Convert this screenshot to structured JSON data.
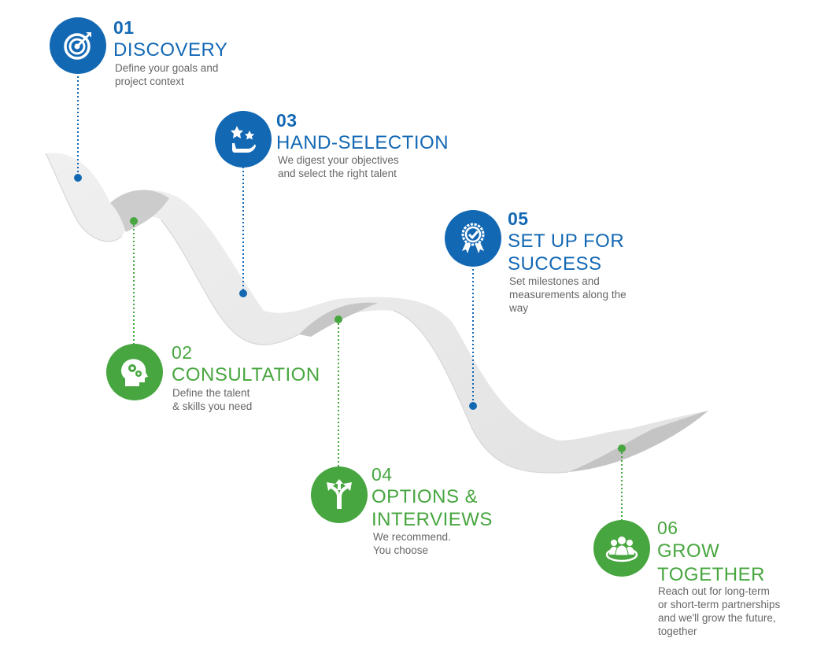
{
  "colors": {
    "blue": "#1368b4",
    "green": "#47a63f",
    "ribbon_light": "#ebebeb",
    "ribbon_shade": "#c9c9c9",
    "description": "#666666"
  },
  "steps": [
    {
      "number": "01",
      "title": [
        "DISCOVERY"
      ],
      "description": [
        "Define your goals and",
        "project context"
      ],
      "color": "blue",
      "icon": "target-icon"
    },
    {
      "number": "02",
      "title": [
        "CONSULTATION"
      ],
      "description": [
        "Define the talent",
        "& skills you need"
      ],
      "color": "green",
      "icon": "head-gears-icon"
    },
    {
      "number": "03",
      "title": [
        "HAND-SELECTION"
      ],
      "description": [
        "We digest your objectives",
        "and select the right talent"
      ],
      "color": "blue",
      "icon": "hand-stars-icon"
    },
    {
      "number": "04",
      "title": [
        "OPTIONS &",
        "INTERVIEWS"
      ],
      "description": [
        "We recommend.",
        "You choose"
      ],
      "color": "green",
      "icon": "split-arrows-icon"
    },
    {
      "number": "05",
      "title": [
        "SET UP FOR",
        "SUCCESS"
      ],
      "description": [
        "Set milestones and",
        "measurements along the",
        "way"
      ],
      "color": "blue",
      "icon": "award-badge-icon"
    },
    {
      "number": "06",
      "title": [
        "GROW",
        "TOGETHER"
      ],
      "description": [
        "Reach out for long-term",
        "or short-term partnerships",
        "and we'll grow the future,",
        "together"
      ],
      "color": "green",
      "icon": "team-icon"
    }
  ]
}
